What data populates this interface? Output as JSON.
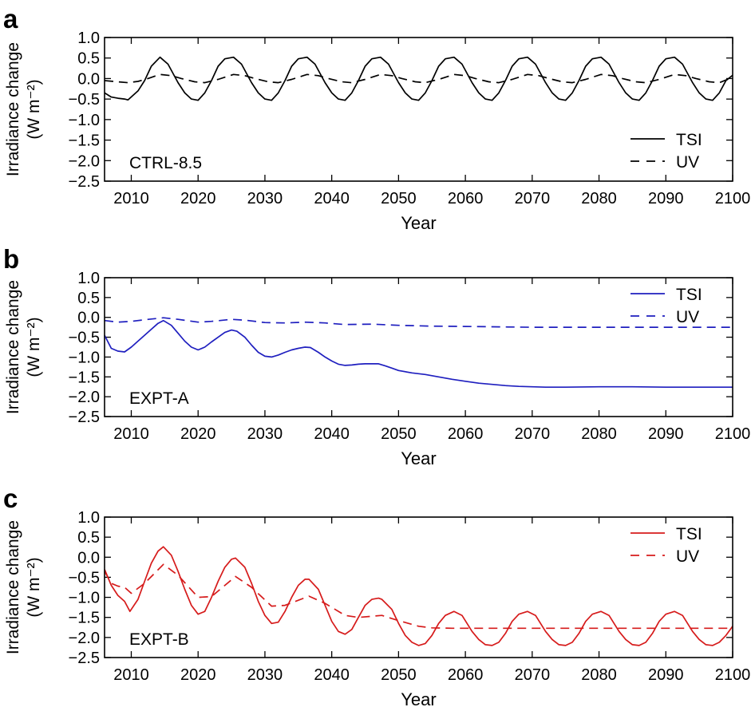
{
  "chart_data": [
    {
      "type": "line",
      "panel_letter": "a",
      "annotation": "CTRL-8.5",
      "xlabel": "Year",
      "ylabel_line1": "Irradiance change",
      "ylabel_line2": "(W m⁻²)",
      "xlim": [
        2006,
        2100
      ],
      "ylim": [
        -2.5,
        1.0
      ],
      "xticks": [
        2010,
        2020,
        2030,
        2040,
        2050,
        2060,
        2070,
        2080,
        2090,
        2100
      ],
      "xtick_labels": [
        "2010",
        "2020",
        "2030",
        "2040",
        "2050",
        "2060",
        "2070",
        "2080",
        "2090",
        "2100"
      ],
      "yticks": [
        1.0,
        0.5,
        0.0,
        -0.5,
        -1.0,
        -1.5,
        -2.0,
        -2.5
      ],
      "ytick_labels": [
        "1.0",
        "0.5",
        "0.0",
        "−0.5",
        "−1.0",
        "−1.5",
        "−2.0",
        "−2.5"
      ],
      "color": "#000000",
      "legend": "bottom-right",
      "series": [
        {
          "name": "TSI",
          "style": "solid",
          "x": [
            2006,
            2007,
            2008,
            2009,
            2009.5,
            2011,
            2012,
            2013,
            2014.3,
            2015.5,
            2017,
            2018,
            2019,
            2020,
            2021,
            2022,
            2023,
            2024,
            2025.3,
            2026.5,
            2028,
            2029,
            2030,
            2031,
            2032,
            2033,
            2034,
            2035,
            2036.3,
            2037.5,
            2039,
            2040,
            2041,
            2042,
            2043,
            2044,
            2045,
            2046,
            2047.3,
            2048.5,
            2050,
            2051,
            2052,
            2053,
            2054,
            2055,
            2056,
            2057,
            2058.3,
            2059.5,
            2061,
            2062,
            2063,
            2064,
            2065,
            2066,
            2067,
            2068,
            2069.3,
            2070.5,
            2072,
            2073,
            2074,
            2075,
            2076,
            2077,
            2078,
            2079,
            2080.3,
            2081.5,
            2083,
            2084,
            2085,
            2086,
            2087,
            2088,
            2089,
            2090,
            2091.3,
            2092.5,
            2094,
            2095,
            2096,
            2097,
            2098,
            2099,
            2100
          ],
          "y": [
            -0.35,
            -0.45,
            -0.48,
            -0.5,
            -0.52,
            -0.3,
            -0.05,
            0.3,
            0.52,
            0.35,
            -0.1,
            -0.35,
            -0.5,
            -0.53,
            -0.35,
            -0.05,
            0.3,
            0.48,
            0.52,
            0.35,
            -0.1,
            -0.35,
            -0.5,
            -0.53,
            -0.35,
            -0.05,
            0.3,
            0.48,
            0.52,
            0.35,
            -0.1,
            -0.35,
            -0.5,
            -0.53,
            -0.35,
            -0.05,
            0.3,
            0.48,
            0.52,
            0.35,
            -0.1,
            -0.35,
            -0.5,
            -0.53,
            -0.35,
            -0.05,
            0.3,
            0.48,
            0.52,
            0.35,
            -0.1,
            -0.35,
            -0.5,
            -0.53,
            -0.35,
            -0.05,
            0.3,
            0.48,
            0.52,
            0.35,
            -0.1,
            -0.35,
            -0.5,
            -0.53,
            -0.35,
            -0.05,
            0.3,
            0.48,
            0.52,
            0.35,
            -0.1,
            -0.35,
            -0.5,
            -0.53,
            -0.35,
            -0.05,
            0.3,
            0.48,
            0.52,
            0.35,
            -0.1,
            -0.35,
            -0.5,
            -0.53,
            -0.35,
            -0.05,
            0.08
          ]
        },
        {
          "name": "UV",
          "style": "dashed",
          "x": [
            2006,
            2008,
            2009.5,
            2011,
            2012.5,
            2014.3,
            2016,
            2017.5,
            2019.5,
            2021,
            2023,
            2025.3,
            2027,
            2028.5,
            2030.5,
            2032,
            2034,
            2036.3,
            2038,
            2039.5,
            2041.5,
            2043,
            2045,
            2047.3,
            2049,
            2050.5,
            2052.5,
            2054,
            2056,
            2058.3,
            2060,
            2061.5,
            2063.5,
            2065,
            2067,
            2069.3,
            2071,
            2072.5,
            2074.5,
            2076,
            2078,
            2080.3,
            2082,
            2083.5,
            2085.5,
            2087,
            2089,
            2091.3,
            2093,
            2094.5,
            2096.5,
            2098,
            2100
          ],
          "y": [
            -0.05,
            -0.08,
            -0.1,
            -0.07,
            0.0,
            0.1,
            0.07,
            0.0,
            -0.08,
            -0.1,
            -0.02,
            0.1,
            0.07,
            0.0,
            -0.08,
            -0.1,
            -0.02,
            0.1,
            0.07,
            0.0,
            -0.08,
            -0.1,
            -0.02,
            0.1,
            0.07,
            0.0,
            -0.08,
            -0.1,
            -0.02,
            0.1,
            0.07,
            0.0,
            -0.08,
            -0.1,
            -0.02,
            0.1,
            0.07,
            0.0,
            -0.08,
            -0.1,
            -0.02,
            0.1,
            0.07,
            0.0,
            -0.08,
            -0.1,
            -0.02,
            0.1,
            0.07,
            0.0,
            -0.08,
            -0.1,
            0.03
          ]
        }
      ]
    },
    {
      "type": "line",
      "panel_letter": "b",
      "annotation": "EXPT-A",
      "xlabel": "Year",
      "ylabel_line1": "Irradiance change",
      "ylabel_line2": "(W m⁻²)",
      "xlim": [
        2006,
        2100
      ],
      "ylim": [
        -2.5,
        1.0
      ],
      "xticks": [
        2010,
        2020,
        2030,
        2040,
        2050,
        2060,
        2070,
        2080,
        2090,
        2100
      ],
      "xtick_labels": [
        "2010",
        "2020",
        "2030",
        "2040",
        "2050",
        "2060",
        "2070",
        "2080",
        "2090",
        "2100"
      ],
      "yticks": [
        1.0,
        0.5,
        0.0,
        -0.5,
        -1.0,
        -1.5,
        -2.0,
        -2.5
      ],
      "ytick_labels": [
        "1.0",
        "0.5",
        "0.0",
        "−0.5",
        "−1.0",
        "−1.5",
        "−2.0",
        "−2.5"
      ],
      "color": "#1f1fbf",
      "legend": "top-right",
      "series": [
        {
          "name": "TSI",
          "style": "solid",
          "x": [
            2006,
            2007,
            2008,
            2009,
            2010,
            2011,
            2012,
            2013,
            2014,
            2014.8,
            2016,
            2017,
            2018,
            2019,
            2020,
            2021,
            2022,
            2023,
            2024,
            2025,
            2025.8,
            2027,
            2028,
            2029,
            2030,
            2031,
            2032,
            2033,
            2034,
            2035,
            2036,
            2036.8,
            2038,
            2039,
            2040,
            2041,
            2042,
            2043,
            2044,
            2045,
            2046,
            2047,
            2048,
            2049,
            2050,
            2052,
            2054,
            2056,
            2058,
            2060,
            2062,
            2064,
            2066,
            2068,
            2070,
            2072,
            2075,
            2080,
            2085,
            2090,
            2095,
            2100
          ],
          "y": [
            -0.45,
            -0.78,
            -0.85,
            -0.87,
            -0.75,
            -0.6,
            -0.45,
            -0.3,
            -0.15,
            -0.08,
            -0.2,
            -0.4,
            -0.6,
            -0.75,
            -0.82,
            -0.75,
            -0.62,
            -0.5,
            -0.38,
            -0.32,
            -0.35,
            -0.5,
            -0.7,
            -0.88,
            -0.98,
            -1.0,
            -0.95,
            -0.88,
            -0.82,
            -0.78,
            -0.75,
            -0.76,
            -0.88,
            -1.0,
            -1.1,
            -1.18,
            -1.21,
            -1.2,
            -1.18,
            -1.17,
            -1.17,
            -1.17,
            -1.22,
            -1.28,
            -1.34,
            -1.4,
            -1.44,
            -1.5,
            -1.56,
            -1.61,
            -1.66,
            -1.69,
            -1.72,
            -1.74,
            -1.75,
            -1.76,
            -1.76,
            -1.75,
            -1.75,
            -1.76,
            -1.76,
            -1.76
          ]
        },
        {
          "name": "UV",
          "style": "dashed",
          "x": [
            2006,
            2008,
            2010,
            2012,
            2014.8,
            2017,
            2020,
            2022,
            2025,
            2027,
            2030,
            2033,
            2036,
            2039,
            2042,
            2046,
            2050,
            2055,
            2060,
            2065,
            2070,
            2080,
            2090,
            2100
          ],
          "y": [
            -0.08,
            -0.12,
            -0.1,
            -0.06,
            -0.01,
            -0.05,
            -0.12,
            -0.1,
            -0.05,
            -0.07,
            -0.13,
            -0.14,
            -0.12,
            -0.14,
            -0.18,
            -0.17,
            -0.2,
            -0.22,
            -0.23,
            -0.24,
            -0.25,
            -0.25,
            -0.25,
            -0.25
          ]
        }
      ]
    },
    {
      "type": "line",
      "panel_letter": "c",
      "annotation": "EXPT-B",
      "xlabel": "Year",
      "ylabel_line1": "Irradiance change",
      "ylabel_line2": "(W m⁻²)",
      "xlim": [
        2006,
        2100
      ],
      "ylim": [
        -2.5,
        1.0
      ],
      "xticks": [
        2010,
        2020,
        2030,
        2040,
        2050,
        2060,
        2070,
        2080,
        2090,
        2100
      ],
      "xtick_labels": [
        "2010",
        "2020",
        "2030",
        "2040",
        "2050",
        "2060",
        "2070",
        "2080",
        "2090",
        "2100"
      ],
      "yticks": [
        1.0,
        0.5,
        0.0,
        -0.5,
        -1.0,
        -1.5,
        -2.0,
        -2.5
      ],
      "ytick_labels": [
        "1.0",
        "0.5",
        "0.0",
        "−0.5",
        "−1.0",
        "−1.5",
        "−2.0",
        "−2.5"
      ],
      "color": "#d61b1b",
      "legend": "top-right",
      "series": [
        {
          "name": "TSI",
          "style": "solid",
          "x": [
            2006,
            2007,
            2008,
            2009,
            2009.8,
            2011,
            2012,
            2013,
            2014,
            2014.8,
            2016,
            2017,
            2018,
            2019,
            2020,
            2021,
            2022,
            2023,
            2024,
            2025,
            2025.6,
            2027,
            2028,
            2029,
            2030,
            2031,
            2032,
            2033,
            2034,
            2035,
            2036,
            2036.6,
            2038,
            2039,
            2040,
            2041,
            2042,
            2043,
            2044,
            2045,
            2046,
            2047,
            2047.5,
            2049,
            2050,
            2051,
            2052,
            2053,
            2054,
            2055,
            2056,
            2057,
            2058.3,
            2059.5,
            2061,
            2062,
            2063,
            2064,
            2065,
            2066,
            2067,
            2068,
            2069.3,
            2070.5,
            2072,
            2073,
            2074,
            2075,
            2076,
            2077,
            2078,
            2079,
            2080.3,
            2081.5,
            2083,
            2084,
            2085,
            2086,
            2087,
            2088,
            2089,
            2090,
            2091.3,
            2092.5,
            2094,
            2095,
            2096,
            2097,
            2098,
            2099,
            2100
          ],
          "y": [
            -0.3,
            -0.7,
            -0.95,
            -1.1,
            -1.35,
            -1.05,
            -0.6,
            -0.15,
            0.15,
            0.26,
            0.05,
            -0.35,
            -0.8,
            -1.2,
            -1.42,
            -1.35,
            -1.0,
            -0.6,
            -0.25,
            -0.05,
            -0.02,
            -0.25,
            -0.65,
            -1.1,
            -1.45,
            -1.65,
            -1.62,
            -1.35,
            -1.0,
            -0.7,
            -0.55,
            -0.55,
            -0.8,
            -1.2,
            -1.6,
            -1.85,
            -1.92,
            -1.8,
            -1.5,
            -1.2,
            -1.05,
            -1.02,
            -1.05,
            -1.3,
            -1.65,
            -1.95,
            -2.12,
            -2.2,
            -2.15,
            -1.95,
            -1.65,
            -1.45,
            -1.35,
            -1.45,
            -1.85,
            -2.05,
            -2.18,
            -2.2,
            -2.12,
            -1.9,
            -1.6,
            -1.42,
            -1.35,
            -1.45,
            -1.85,
            -2.05,
            -2.18,
            -2.2,
            -2.12,
            -1.9,
            -1.6,
            -1.42,
            -1.35,
            -1.45,
            -1.85,
            -2.05,
            -2.18,
            -2.2,
            -2.12,
            -1.9,
            -1.6,
            -1.42,
            -1.35,
            -1.45,
            -1.85,
            -2.05,
            -2.18,
            -2.2,
            -2.12,
            -1.95,
            -1.72
          ]
        },
        {
          "name": "UV",
          "style": "dashed",
          "x": [
            2006,
            2007,
            2008,
            2009,
            2010,
            2012,
            2014.8,
            2017,
            2020,
            2022,
            2025.6,
            2028,
            2031,
            2033,
            2036.6,
            2039,
            2042,
            2044,
            2047.5,
            2050,
            2053,
            2055,
            2058,
            2060,
            2065,
            2070,
            2080,
            2090,
            2100
          ],
          "y": [
            -0.35,
            -0.65,
            -0.72,
            -0.75,
            -0.9,
            -0.65,
            -0.18,
            -0.45,
            -1.0,
            -0.98,
            -0.48,
            -0.75,
            -1.22,
            -1.2,
            -0.97,
            -1.15,
            -1.45,
            -1.5,
            -1.45,
            -1.58,
            -1.72,
            -1.76,
            -1.77,
            -1.77,
            -1.77,
            -1.77,
            -1.77,
            -1.77,
            -1.77
          ]
        }
      ]
    }
  ]
}
